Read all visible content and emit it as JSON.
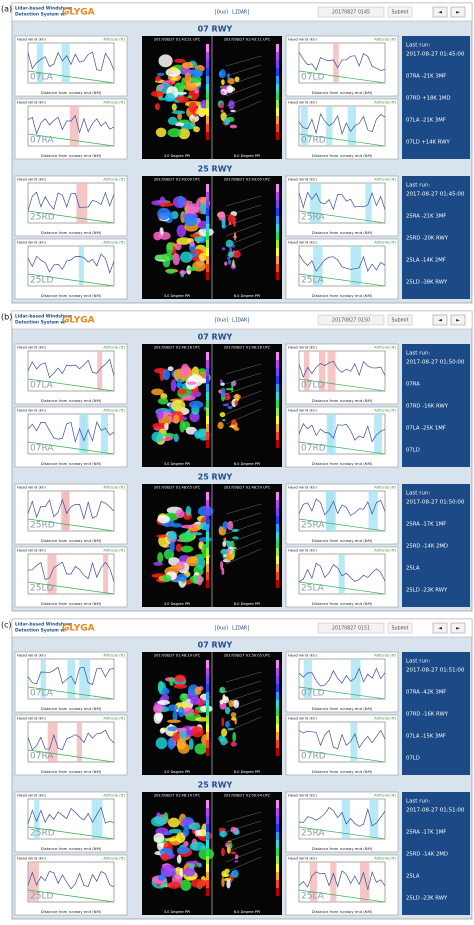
{
  "labels": {
    "head_wind": "Head wind (kn)",
    "altitude": "Altitude (ft)",
    "distance": "Distance from runway end (NM)",
    "last_run": "Last run:",
    "submit": "Submit",
    "prev": "◄",
    "next": "►",
    "title_line1": "Lidar-based Windshear",
    "title_line2": "Detection System w/",
    "brand": "GLYGA",
    "mode": "[Dual LIDAR]",
    "ppi_left": "3.0 Degree PPI",
    "ppi_right": "6.0 Degree PPI"
  },
  "panels": [
    {
      "label": "(a)",
      "time": "20170827 0145",
      "sections": [
        {
          "title": "07 RWY",
          "plots": [
            "07LA",
            "07RA",
            "07LD",
            "07RD"
          ],
          "radar_times": [
            "2017/08/27 01:43:51 UTC",
            "2017/08/27 01:43:11 UTC"
          ],
          "run_time": "2017-08-27 01:45:00",
          "rows": [
            "07RA  -21K 3MF",
            "07RD  +18K 1MD",
            "07LA  -21K 3MF",
            "07LD  +14K RWY"
          ]
        },
        {
          "title": "25 RWY",
          "plots": [
            "25RD",
            "25LD",
            "25RA",
            "25LA"
          ],
          "radar_times": [
            "2017/08/27 01:43:00 UTC",
            "2017/08/27 01:43:00 UTC"
          ],
          "run_time": "2017-08-27 01:45:00",
          "rows": [
            "25RA  -21K 3MF",
            "25RD  -20K RWY",
            "25LA  -14K 2MF",
            "25LD  -38K RWY"
          ]
        }
      ]
    },
    {
      "label": "(b)",
      "time": "20170827 0150",
      "sections": [
        {
          "title": "07 RWY",
          "plots": [
            "07LA",
            "07RA",
            "07LD",
            "07RD"
          ],
          "radar_times": [
            "2017/08/27 01:48:16 UTC",
            "2017/08/27 01:48:26 UTC"
          ],
          "run_time": "2017-08-27 01:50:00",
          "rows": [
            "07RA",
            "07RD  -16K RWY",
            "07LA  -25K 1MF",
            "07LD"
          ]
        },
        {
          "title": "25 RWY",
          "plots": [
            "25RD",
            "25LD",
            "25RA",
            "25LA"
          ],
          "radar_times": [
            "2017/08/27 01:48:05 UTC",
            "2017/08/27 01:48:59 UTC"
          ],
          "run_time": "2017-08-27 01:50:00",
          "rows": [
            "25RA  -17K 1MF",
            "25RD  -14K 2MD",
            "25LA",
            "25LD  -23K RWY"
          ]
        }
      ]
    },
    {
      "label": "(c)",
      "time": "20170827 0151",
      "sections": [
        {
          "title": "07 RWY",
          "plots": [
            "07LA",
            "07RA",
            "07LD",
            "07RD"
          ],
          "radar_times": [
            "2017/08/27 01:48:19 UTC",
            "2017/08/27 01:50:05 UTC"
          ],
          "run_time": "2017-08-27 01:51:00",
          "rows": [
            "07RA  -42K 3MF",
            "07RD  -16K RWY",
            "07LA  -15K 3MF",
            "07LD"
          ]
        },
        {
          "title": "25 RWY",
          "plots": [
            "25RD",
            "25LD",
            "25RA",
            "25LA"
          ],
          "radar_times": [
            "2017/08/27 01:48:14 UTC",
            "2017/08/27 01:50:04 UTC"
          ],
          "run_time": "2017-08-27 01:51:00",
          "rows": [
            "25RA  -17K 1MF",
            "25RD  -14K 2MD",
            "25LA",
            "25LD  -23K RWY"
          ]
        }
      ]
    }
  ]
}
